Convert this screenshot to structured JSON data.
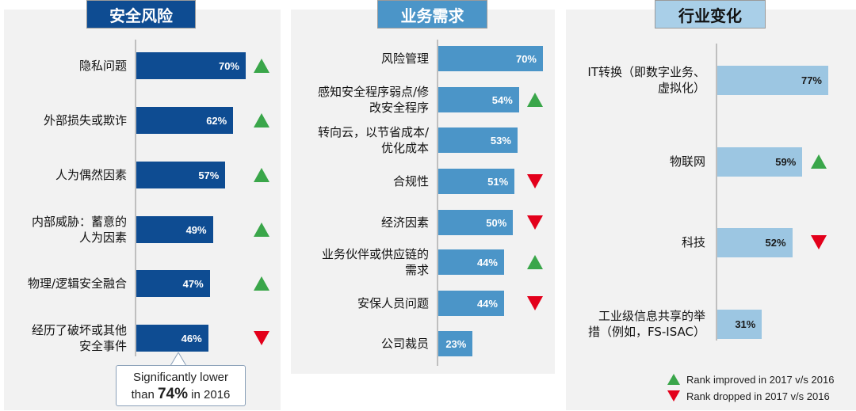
{
  "chart_data": [
    {
      "type": "bar",
      "orientation": "horizontal",
      "title": "安全风险",
      "bar_color": "#0e4c92",
      "categories": [
        "隐私问题",
        "外部损失或欺诈",
        "人为偶然因素",
        "内部威胁：蓄意的人为因素",
        "物理/逻辑安全融合",
        "经历了破坏或其他安全事件"
      ],
      "label_lines": [
        [
          "隐私问题"
        ],
        [
          "外部损失或欺诈"
        ],
        [
          "人为偶然因素"
        ],
        [
          "内部威胁：蓄意的",
          "人为因素"
        ],
        [
          "物理/逻辑安全融合"
        ],
        [
          "经历了破坏或其他",
          "安全事件"
        ]
      ],
      "values": [
        70,
        62,
        57,
        49,
        47,
        46
      ],
      "value_labels": [
        "70%",
        "62%",
        "57%",
        "49%",
        "47%",
        "46%"
      ],
      "rank_change": [
        "up",
        "up",
        "up",
        "up",
        "up",
        "down"
      ],
      "annotation": {
        "line1": "Significantly lower",
        "prefix": "than",
        "highlight": "74%",
        "suffix": "in 2016"
      }
    },
    {
      "type": "bar",
      "orientation": "horizontal",
      "title": "业务需求",
      "bar_color": "#4b95c8",
      "categories": [
        "风险管理",
        "感知安全程序弱点/修改安全程序",
        "转向云，以节省成本/优化成本",
        "合规性",
        "经济因素",
        "业务伙伴或供应链的需求",
        "安保人员问题",
        "公司裁员"
      ],
      "label_lines": [
        [
          "风险管理"
        ],
        [
          "感知安全程序弱点/修",
          "改安全程序"
        ],
        [
          "转向云，以节省成本/",
          "优化成本"
        ],
        [
          "合规性"
        ],
        [
          "经济因素"
        ],
        [
          "业务伙伴或供应链的",
          "需求"
        ],
        [
          "安保人员问题"
        ],
        [
          "公司裁员"
        ]
      ],
      "values": [
        70,
        54,
        53,
        51,
        50,
        44,
        44,
        23
      ],
      "value_labels": [
        "70%",
        "54%",
        "53%",
        "51%",
        "50%",
        "44%",
        "44%",
        "23%"
      ],
      "rank_change": [
        "",
        "up",
        "",
        "down",
        "down",
        "up",
        "down",
        ""
      ]
    },
    {
      "type": "bar",
      "orientation": "horizontal",
      "title": "行业变化",
      "bar_color": "#9cc6e2",
      "categories": [
        "IT转换（即数字业务、虚拟化）",
        "物联网",
        "科技",
        "工业级信息共享的举措（例如，FS-ISAC）"
      ],
      "label_lines": [
        [
          "IT转换（即数字业务、",
          "虚拟化）"
        ],
        [
          "物联网"
        ],
        [
          "科技"
        ],
        [
          "工业级信息共享的举",
          "措（例如，FS-ISAC）"
        ]
      ],
      "values": [
        77,
        59,
        52,
        31
      ],
      "value_labels": [
        "77%",
        "59%",
        "52%",
        "31%"
      ],
      "rank_change": [
        "",
        "up",
        "down",
        ""
      ],
      "legend": [
        {
          "symbol": "up",
          "label": "Rank improved in 2017 v/s 2016"
        },
        {
          "symbol": "down",
          "label": "Rank dropped in 2017 v/s 2016"
        }
      ]
    }
  ],
  "colors": {
    "up": "#3aa64a",
    "down": "#e3001b",
    "tab1_bg": "#0e4c92",
    "tab1_fg": "#ffffff",
    "tab2_bg": "#4b95c8",
    "tab2_fg": "#ffffff",
    "tab3_bg": "#a9cfe8",
    "tab3_fg": "#111111"
  }
}
